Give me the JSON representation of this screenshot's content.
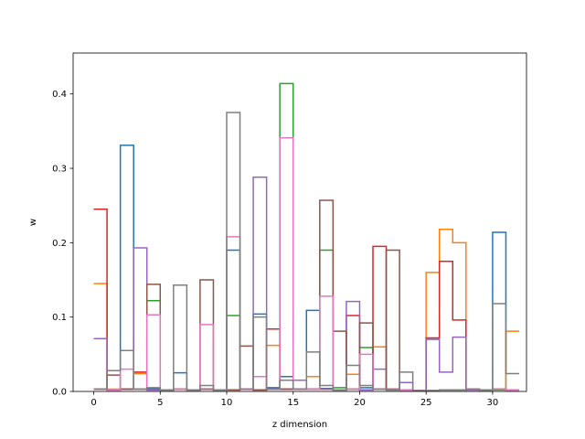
{
  "chart_data": {
    "type": "step",
    "xlabel": "z dimension",
    "ylabel": "w",
    "xlim": [
      -1.55,
      32.55
    ],
    "ylim": [
      0,
      0.455
    ],
    "xticks": [
      0,
      5,
      10,
      15,
      20,
      25,
      30
    ],
    "yticks": [
      0.0,
      0.1,
      0.2,
      0.3,
      0.4
    ],
    "x_edges": [
      0,
      1,
      2,
      3,
      4,
      5,
      6,
      7,
      8,
      9,
      10,
      11,
      12,
      13,
      14,
      15,
      16,
      17,
      18,
      19,
      20,
      21,
      22,
      23,
      24,
      25,
      26,
      27,
      28,
      29,
      30,
      31
    ],
    "series": [
      {
        "color": "#1f77b4",
        "values": [
          0.003,
          0.002,
          0.331,
          0.003,
          0.004,
          0.002,
          0.025,
          0.002,
          0.003,
          0.002,
          0.19,
          0.003,
          0.104,
          0.005,
          0.02,
          0.003,
          0.109,
          0.004,
          0.002,
          0.003,
          0.005,
          0.003,
          0.002,
          0.002,
          0.001,
          0.001,
          0.002,
          0.002,
          0.003,
          0.002,
          0.214,
          0.002
        ]
      },
      {
        "color": "#ff7f0e",
        "values": [
          0.145,
          0.003,
          0.003,
          0.024,
          0.002,
          0.002,
          0.003,
          0.002,
          0.003,
          0.002,
          0.002,
          0.003,
          0.002,
          0.062,
          0.003,
          0.003,
          0.02,
          0.003,
          0.002,
          0.023,
          0.002,
          0.06,
          0.003,
          0.002,
          0.001,
          0.16,
          0.218,
          0.2,
          0.002,
          0.002,
          0.003,
          0.081
        ]
      },
      {
        "color": "#2ca02c",
        "values": [
          0.003,
          0.002,
          0.003,
          0.003,
          0.122,
          0.002,
          0.003,
          0.002,
          0.003,
          0.002,
          0.102,
          0.003,
          0.002,
          0.003,
          0.414,
          0.003,
          0.003,
          0.19,
          0.005,
          0.003,
          0.059,
          0.003,
          0.002,
          0.002,
          0.001,
          0.001,
          0.002,
          0.002,
          0.003,
          0.002,
          0.002,
          0.002
        ]
      },
      {
        "color": "#d62728",
        "values": [
          0.245,
          0.002,
          0.003,
          0.026,
          0.002,
          0.002,
          0.003,
          0.002,
          0.003,
          0.002,
          0.002,
          0.003,
          0.002,
          0.084,
          0.003,
          0.003,
          0.003,
          0.003,
          0.002,
          0.102,
          0.002,
          0.195,
          0.003,
          0.002,
          0.001,
          0.072,
          0.175,
          0.096,
          0.002,
          0.002,
          0.003,
          0.002
        ]
      },
      {
        "color": "#9467bd",
        "values": [
          0.071,
          0.002,
          0.003,
          0.193,
          0.002,
          0.002,
          0.003,
          0.002,
          0.003,
          0.002,
          0.002,
          0.003,
          0.288,
          0.003,
          0.003,
          0.015,
          0.003,
          0.003,
          0.002,
          0.121,
          0.002,
          0.03,
          0.003,
          0.012,
          0.001,
          0.07,
          0.026,
          0.073,
          0.002,
          0.002,
          0.003,
          0.002
        ]
      },
      {
        "color": "#8c564b",
        "values": [
          0.003,
          0.022,
          0.003,
          0.003,
          0.144,
          0.002,
          0.003,
          0.002,
          0.15,
          0.002,
          0.002,
          0.061,
          0.002,
          0.003,
          0.003,
          0.003,
          0.003,
          0.257,
          0.081,
          0.003,
          0.092,
          0.003,
          0.19,
          0.002,
          0.001,
          0.001,
          0.002,
          0.002,
          0.003,
          0.002,
          0.003,
          0.002
        ]
      },
      {
        "color": "#e377c2",
        "values": [
          0.003,
          0.002,
          0.03,
          0.003,
          0.103,
          0.002,
          0.003,
          0.002,
          0.09,
          0.002,
          0.208,
          0.003,
          0.02,
          0.003,
          0.341,
          0.003,
          0.003,
          0.128,
          0.002,
          0.003,
          0.05,
          0.003,
          0.002,
          0.002,
          0.001,
          0.001,
          0.002,
          0.002,
          0.003,
          0.002,
          0.003,
          0.002
        ]
      },
      {
        "color": "#7f7f7f",
        "values": [
          0.003,
          0.028,
          0.055,
          0.003,
          0.005,
          0.002,
          0.143,
          0.002,
          0.008,
          0.002,
          0.375,
          0.003,
          0.1,
          0.003,
          0.015,
          0.003,
          0.053,
          0.008,
          0.002,
          0.035,
          0.008,
          0.003,
          0.002,
          0.026,
          0.001,
          0.001,
          0.002,
          0.002,
          0.003,
          0.002,
          0.118,
          0.024
        ]
      }
    ]
  }
}
